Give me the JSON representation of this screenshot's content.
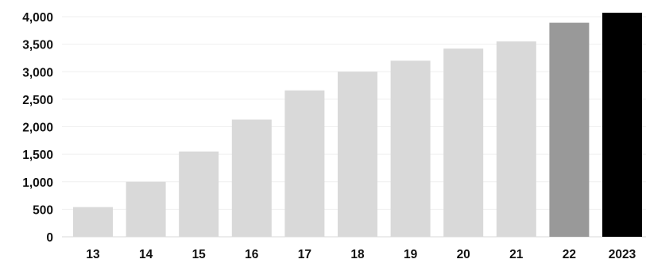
{
  "chart_data": {
    "type": "bar",
    "title": "",
    "xlabel": "",
    "ylabel": "",
    "categories": [
      "13",
      "14",
      "15",
      "16",
      "17",
      "18",
      "19",
      "20",
      "21",
      "22",
      "2023"
    ],
    "values": [
      540,
      1000,
      1550,
      2130,
      2660,
      3000,
      3200,
      3420,
      3550,
      3890,
      4080
    ],
    "bar_colors": [
      "#d9d9d9",
      "#d9d9d9",
      "#d9d9d9",
      "#d9d9d9",
      "#d9d9d9",
      "#d9d9d9",
      "#d9d9d9",
      "#d9d9d9",
      "#d9d9d9",
      "#999999",
      "#000000"
    ],
    "ylim": [
      0,
      4000
    ],
    "y_ticks": [
      0,
      500,
      1000,
      1500,
      2000,
      2500,
      3000,
      3500,
      4000
    ],
    "y_tick_labels": [
      "0",
      "500",
      "1,000",
      "1,500",
      "2,000",
      "2,500",
      "3,000",
      "3,500",
      "4,000"
    ],
    "grid": true,
    "legend": "none"
  }
}
